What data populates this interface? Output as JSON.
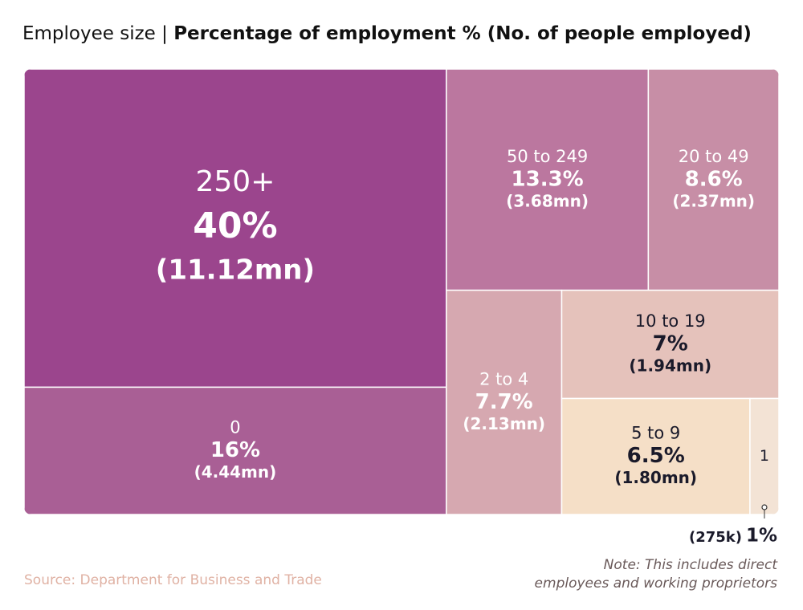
{
  "chart_data": {
    "type": "treemap",
    "title_lead": "Employee size |",
    "title": "Percentage of employment % (No. of people employed)",
    "categories": [
      "250+",
      "50 to 249",
      "20 to 49",
      "0",
      "2 to 4",
      "10 to 19",
      "5 to 9",
      "1"
    ],
    "values": [
      40,
      13.3,
      8.6,
      16,
      7.7,
      7,
      6.5,
      1
    ],
    "value_labels": [
      "40%",
      "13.3%",
      "8.6%",
      "16%",
      "7.7%",
      "7%",
      "6.5%",
      "1%"
    ],
    "employed_mn": [
      11.12,
      3.68,
      2.37,
      4.44,
      2.13,
      1.94,
      1.8,
      0.275
    ],
    "employed_labels": [
      "(11.12mn)",
      "(3.68mn)",
      "(2.37mn)",
      "(4.44mn)",
      "(2.13mn)",
      "(1.94mn)",
      "(1.80mn)",
      "(275k)"
    ],
    "colors": [
      "#9b458d",
      "#bb779f",
      "#c78ea6",
      "#a95f95",
      "#d6a8b0",
      "#e5c2bb",
      "#f5dfc7",
      "#f3e3d5"
    ],
    "source": "Source: Department for Business and Trade",
    "note": [
      "Note: This includes direct",
      "employees and working proprietors"
    ]
  }
}
